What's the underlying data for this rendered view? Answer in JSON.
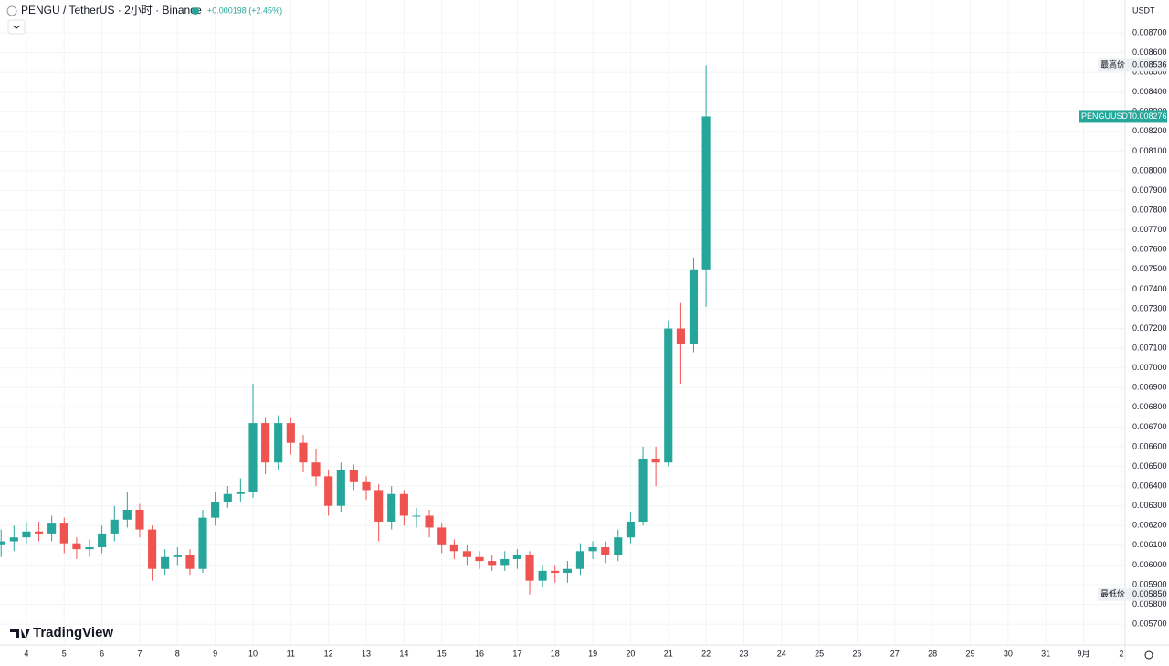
{
  "header": {
    "symbol": "PENGU / TetherUS · 2小时 · Binance",
    "change": "+0.000198 (+2.45%)",
    "currency": "USDT",
    "brand": "TradingView"
  },
  "chart_data": {
    "type": "candlestick",
    "x": [
      3.33,
      3.67,
      4,
      4.33,
      4.67,
      5,
      5.33,
      5.67,
      6,
      6.33,
      6.67,
      7,
      7.33,
      7.67,
      8,
      8.33,
      8.67,
      9,
      9.33,
      9.67,
      10,
      10.33,
      10.67,
      11,
      11.33,
      11.67,
      12,
      12.33,
      12.67,
      13,
      13.33,
      13.67,
      14,
      14.33,
      14.67,
      15,
      15.33,
      15.67,
      16,
      16.33,
      16.67,
      17,
      17.33,
      17.67,
      18,
      18.33,
      18.67,
      19,
      19.33,
      19.67,
      20,
      20.33,
      20.67,
      21,
      21.33,
      21.67,
      22
    ],
    "open": [
      0.0061,
      0.00612,
      0.00614,
      0.00617,
      0.00616,
      0.00621,
      0.00611,
      0.00608,
      0.00609,
      0.00616,
      0.00623,
      0.00628,
      0.00618,
      0.00598,
      0.00604,
      0.00605,
      0.00598,
      0.00624,
      0.00632,
      0.00636,
      0.00637,
      0.00672,
      0.00652,
      0.00672,
      0.00662,
      0.00652,
      0.00645,
      0.0063,
      0.00648,
      0.00642,
      0.00638,
      0.00622,
      0.00636,
      0.00625,
      0.00625,
      0.00619,
      0.0061,
      0.00607,
      0.00604,
      0.00602,
      0.006,
      0.00603,
      0.00605,
      0.00592,
      0.00597,
      0.00596,
      0.00598,
      0.00607,
      0.00609,
      0.00605,
      0.00614,
      0.00622,
      0.00654,
      0.00652,
      0.0072,
      0.00712,
      0.0075
    ],
    "high": [
      0.00618,
      0.0062,
      0.00622,
      0.00622,
      0.00625,
      0.00624,
      0.00614,
      0.00613,
      0.0062,
      0.0063,
      0.00637,
      0.00631,
      0.0062,
      0.00608,
      0.00609,
      0.00608,
      0.00628,
      0.00637,
      0.0064,
      0.00644,
      0.00692,
      0.00675,
      0.00676,
      0.00675,
      0.00666,
      0.00659,
      0.00648,
      0.00652,
      0.00651,
      0.00645,
      0.00641,
      0.0064,
      0.00638,
      0.00629,
      0.00628,
      0.00621,
      0.00613,
      0.0061,
      0.00607,
      0.00605,
      0.00607,
      0.00608,
      0.00607,
      0.006,
      0.006,
      0.00602,
      0.00611,
      0.00612,
      0.00612,
      0.00618,
      0.00627,
      0.0066,
      0.0066,
      0.00724,
      0.00733,
      0.00756,
      0.008536
    ],
    "low": [
      0.00604,
      0.00607,
      0.00611,
      0.00612,
      0.00612,
      0.00606,
      0.00603,
      0.00604,
      0.00606,
      0.00612,
      0.00619,
      0.00614,
      0.00592,
      0.00595,
      0.006,
      0.00595,
      0.00596,
      0.0062,
      0.00629,
      0.00632,
      0.00634,
      0.00646,
      0.00648,
      0.00656,
      0.00647,
      0.0064,
      0.00625,
      0.00627,
      0.00638,
      0.00633,
      0.00612,
      0.00618,
      0.0062,
      0.00619,
      0.00614,
      0.00606,
      0.00603,
      0.006,
      0.00598,
      0.00597,
      0.00597,
      0.00598,
      0.00585,
      0.00589,
      0.00591,
      0.00591,
      0.00595,
      0.00603,
      0.00601,
      0.00602,
      0.00611,
      0.0062,
      0.0064,
      0.0065,
      0.00692,
      0.00708,
      0.00731
    ],
    "close": [
      0.00612,
      0.00614,
      0.00617,
      0.00616,
      0.00621,
      0.00611,
      0.00608,
      0.00609,
      0.00616,
      0.00623,
      0.00628,
      0.00618,
      0.00598,
      0.00604,
      0.00605,
      0.00598,
      0.00624,
      0.00632,
      0.00636,
      0.00637,
      0.00672,
      0.00652,
      0.00672,
      0.00662,
      0.00652,
      0.00645,
      0.0063,
      0.00648,
      0.00642,
      0.00638,
      0.00622,
      0.00636,
      0.00625,
      0.00625,
      0.00619,
      0.0061,
      0.00607,
      0.00604,
      0.00602,
      0.006,
      0.00603,
      0.00605,
      0.00592,
      0.00597,
      0.00596,
      0.00598,
      0.00607,
      0.00609,
      0.00605,
      0.00614,
      0.00622,
      0.00654,
      0.00652,
      0.0072,
      0.00712,
      0.0075,
      0.008276
    ],
    "up_color": "#26a69a",
    "down_color": "#ef5350",
    "xlim": [
      3.3,
      33.1
    ],
    "xticks": [
      4,
      5,
      6,
      7,
      8,
      9,
      10,
      11,
      12,
      13,
      14,
      15,
      16,
      17,
      18,
      19,
      20,
      21,
      22,
      23,
      24,
      25,
      26,
      27,
      28,
      29,
      30,
      31,
      {
        "value": 32,
        "label": "9月"
      },
      {
        "value": 33,
        "label": "2"
      }
    ],
    "ylim": [
      0.0056,
      0.00887
    ],
    "yticks": [
      {
        "value": 0.0057,
        "label": "0.005700"
      },
      {
        "value": 0.0058,
        "label": "0.005800"
      },
      {
        "value": 0.0059,
        "label": "0.005900"
      },
      {
        "value": 0.006,
        "label": "0.006000"
      },
      {
        "value": 0.0061,
        "label": "0.006100"
      },
      {
        "value": 0.0062,
        "label": "0.006200"
      },
      {
        "value": 0.0063,
        "label": "0.006300"
      },
      {
        "value": 0.0064,
        "label": "0.006400"
      },
      {
        "value": 0.0065,
        "label": "0.006500"
      },
      {
        "value": 0.0066,
        "label": "0.006600"
      },
      {
        "value": 0.0067,
        "label": "0.006700"
      },
      {
        "value": 0.0068,
        "label": "0.006800"
      },
      {
        "value": 0.0069,
        "label": "0.006900"
      },
      {
        "value": 0.007,
        "label": "0.007000"
      },
      {
        "value": 0.0071,
        "label": "0.007100"
      },
      {
        "value": 0.0072,
        "label": "0.007200"
      },
      {
        "value": 0.0073,
        "label": "0.007300"
      },
      {
        "value": 0.0074,
        "label": "0.007400"
      },
      {
        "value": 0.0075,
        "label": "0.007500"
      },
      {
        "value": 0.0076,
        "label": "0.007600"
      },
      {
        "value": 0.0077,
        "label": "0.007700"
      },
      {
        "value": 0.0078,
        "label": "0.007800"
      },
      {
        "value": 0.0079,
        "label": "0.007900"
      },
      {
        "value": 0.008,
        "label": "0.008000"
      },
      {
        "value": 0.0081,
        "label": "0.008100"
      },
      {
        "value": 0.0082,
        "label": "0.008200"
      },
      {
        "value": 0.0083,
        "label": "0.008300"
      },
      {
        "value": 0.0084,
        "label": "0.008400"
      },
      {
        "value": 0.0085,
        "label": "0.008500"
      },
      {
        "value": 0.0086,
        "label": "0.008600"
      },
      {
        "value": 0.0087,
        "label": "0.008700"
      }
    ],
    "grid": true,
    "markers": [
      {
        "label": "最高价",
        "value": 0.008536
      },
      {
        "label": "PENGUUSDT",
        "value": 0.008276
      },
      {
        "label": "最低价",
        "value": 0.00585,
        "value_label": "0.005850"
      }
    ]
  }
}
